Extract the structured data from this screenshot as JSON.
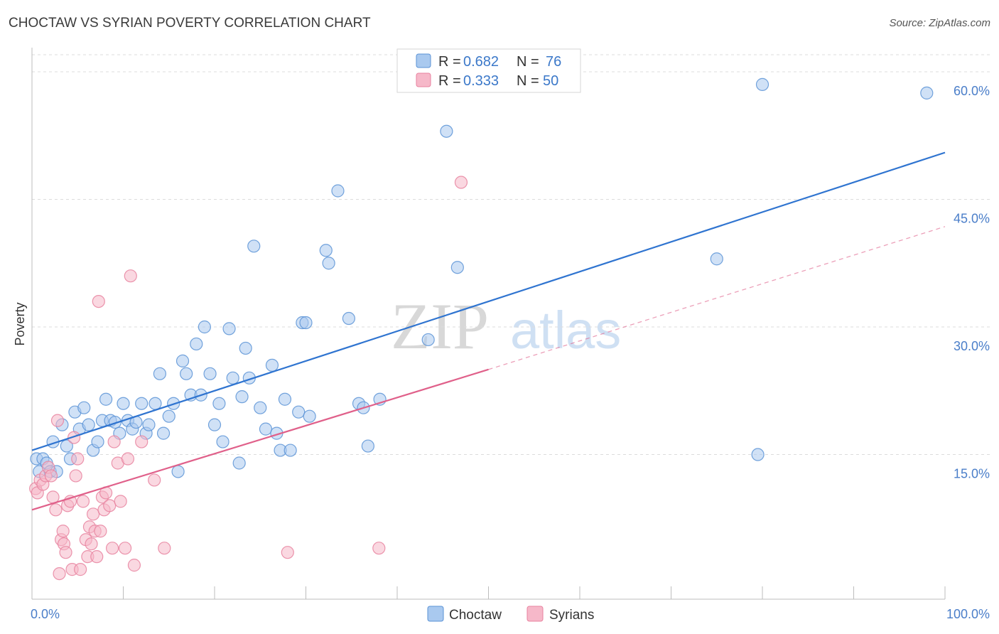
{
  "title": "CHOCTAW VS SYRIAN POVERTY CORRELATION CHART",
  "source": "Source: ZipAtlas.com",
  "watermark": {
    "zip": "ZIP",
    "atlas": "atlas"
  },
  "colors": {
    "choctaw_fill": "#a9c9ef",
    "choctaw_stroke": "#5b93d6",
    "choctaw_line": "#2f74d0",
    "syrian_fill": "#f6b8c9",
    "syrian_stroke": "#e8829f",
    "syrian_line": "#e0608a",
    "grid": "#dcdcdc",
    "tick_text": "#4a7ec9"
  },
  "legend": {
    "rows": [
      {
        "r_label": "R =",
        "r_value": "0.682",
        "n_label": "N =",
        "n_value": "76"
      },
      {
        "r_label": "R =",
        "r_value": "0.333",
        "n_label": "N =",
        "n_value": "50"
      }
    ],
    "bottom": [
      "Choctaw",
      "Syrians"
    ]
  },
  "chart_data": {
    "type": "scatter",
    "title": "CHOCTAW VS SYRIAN POVERTY CORRELATION CHART",
    "xlabel": "",
    "ylabel": "Poverty",
    "xlim": [
      0,
      100
    ],
    "ylim": [
      0,
      60
    ],
    "x_tick_labels": [
      "0.0%",
      "100.0%"
    ],
    "y_ticks": [
      15,
      30,
      45,
      60
    ],
    "y_tick_labels": [
      "15.0%",
      "30.0%",
      "45.0%",
      "60.0%"
    ],
    "grid": true,
    "legend_position": "top-center",
    "series": [
      {
        "name": "Choctaw",
        "r": 0.682,
        "n": 76,
        "trend": {
          "x0": 0,
          "y0": 15.5,
          "x1": 100,
          "y1": 50.5,
          "style": "solid"
        },
        "points": [
          [
            0.5,
            14.5
          ],
          [
            0.8,
            13.0
          ],
          [
            1.2,
            14.5
          ],
          [
            1.6,
            14.0
          ],
          [
            2.0,
            13.0
          ],
          [
            2.3,
            16.5
          ],
          [
            2.7,
            13.0
          ],
          [
            3.3,
            18.5
          ],
          [
            3.8,
            16.0
          ],
          [
            4.2,
            14.5
          ],
          [
            4.7,
            20.0
          ],
          [
            5.2,
            18.0
          ],
          [
            5.7,
            20.5
          ],
          [
            6.2,
            18.5
          ],
          [
            6.7,
            15.5
          ],
          [
            7.2,
            16.5
          ],
          [
            7.7,
            19.0
          ],
          [
            8.1,
            21.5
          ],
          [
            8.6,
            19.0
          ],
          [
            9.1,
            18.8
          ],
          [
            9.6,
            17.5
          ],
          [
            10.0,
            21.0
          ],
          [
            10.5,
            19.0
          ],
          [
            11.0,
            18.0
          ],
          [
            11.4,
            18.8
          ],
          [
            12.0,
            21.0
          ],
          [
            12.5,
            17.5
          ],
          [
            12.8,
            18.5
          ],
          [
            13.5,
            21.0
          ],
          [
            14.0,
            24.5
          ],
          [
            14.4,
            17.5
          ],
          [
            15.0,
            19.5
          ],
          [
            15.5,
            21.0
          ],
          [
            16.0,
            13.0
          ],
          [
            16.5,
            26.0
          ],
          [
            16.9,
            24.5
          ],
          [
            17.4,
            22.0
          ],
          [
            18.0,
            28.0
          ],
          [
            18.5,
            22.0
          ],
          [
            18.9,
            30.0
          ],
          [
            19.5,
            24.5
          ],
          [
            20.0,
            18.5
          ],
          [
            20.5,
            21.0
          ],
          [
            20.9,
            16.5
          ],
          [
            21.6,
            29.8
          ],
          [
            22.0,
            24.0
          ],
          [
            22.7,
            14.0
          ],
          [
            23.0,
            21.8
          ],
          [
            23.4,
            27.5
          ],
          [
            23.8,
            24.0
          ],
          [
            24.3,
            39.5
          ],
          [
            25.0,
            20.5
          ],
          [
            25.6,
            18.0
          ],
          [
            26.3,
            25.5
          ],
          [
            26.8,
            17.5
          ],
          [
            27.2,
            15.5
          ],
          [
            27.7,
            21.5
          ],
          [
            28.3,
            15.5
          ],
          [
            29.2,
            20.0
          ],
          [
            29.6,
            30.5
          ],
          [
            30.0,
            30.5
          ],
          [
            30.4,
            19.5
          ],
          [
            32.2,
            39.0
          ],
          [
            32.5,
            37.5
          ],
          [
            33.5,
            46.0
          ],
          [
            34.7,
            31.0
          ],
          [
            35.8,
            21.0
          ],
          [
            36.3,
            20.5
          ],
          [
            36.8,
            16.0
          ],
          [
            38.1,
            21.5
          ],
          [
            43.4,
            28.5
          ],
          [
            45.4,
            53.0
          ],
          [
            46.6,
            37.0
          ],
          [
            75.0,
            38.0
          ],
          [
            79.5,
            15.0
          ],
          [
            80.0,
            58.5
          ],
          [
            98.0,
            57.5
          ]
        ]
      },
      {
        "name": "Syrians",
        "r": 0.333,
        "n": 50,
        "trend": {
          "x0": 0,
          "y0": 8.5,
          "x1": 50,
          "y1": 25.0,
          "x2": 100,
          "y2": 41.8,
          "style": "solid-then-dashed"
        },
        "points": [
          [
            0.4,
            11.0
          ],
          [
            0.6,
            10.5
          ],
          [
            0.9,
            12.0
          ],
          [
            1.2,
            11.5
          ],
          [
            1.5,
            12.5
          ],
          [
            1.8,
            13.5
          ],
          [
            2.1,
            12.5
          ],
          [
            2.3,
            10.0
          ],
          [
            2.6,
            8.5
          ],
          [
            2.8,
            19.0
          ],
          [
            3.0,
            1.0
          ],
          [
            3.2,
            5.0
          ],
          [
            3.4,
            6.0
          ],
          [
            3.5,
            4.5
          ],
          [
            3.7,
            3.5
          ],
          [
            3.9,
            9.0
          ],
          [
            4.2,
            9.5
          ],
          [
            4.4,
            1.5
          ],
          [
            4.6,
            17.0
          ],
          [
            4.8,
            12.5
          ],
          [
            5.0,
            14.5
          ],
          [
            5.3,
            1.5
          ],
          [
            5.6,
            9.5
          ],
          [
            5.9,
            5.0
          ],
          [
            6.1,
            3.0
          ],
          [
            6.3,
            6.5
          ],
          [
            6.5,
            4.5
          ],
          [
            6.7,
            8.0
          ],
          [
            6.9,
            6.0
          ],
          [
            7.1,
            3.0
          ],
          [
            7.3,
            33.0
          ],
          [
            7.5,
            6.0
          ],
          [
            7.7,
            10.0
          ],
          [
            7.9,
            8.5
          ],
          [
            8.1,
            10.5
          ],
          [
            8.5,
            9.0
          ],
          [
            8.8,
            4.0
          ],
          [
            9.0,
            16.5
          ],
          [
            9.4,
            14.0
          ],
          [
            9.7,
            9.5
          ],
          [
            10.2,
            4.0
          ],
          [
            10.5,
            14.5
          ],
          [
            10.8,
            36.0
          ],
          [
            11.2,
            2.0
          ],
          [
            12.0,
            16.5
          ],
          [
            13.4,
            12.0
          ],
          [
            14.5,
            4.0
          ],
          [
            28.0,
            3.5
          ],
          [
            38.0,
            4.0
          ],
          [
            47.0,
            47.0
          ]
        ]
      }
    ]
  }
}
